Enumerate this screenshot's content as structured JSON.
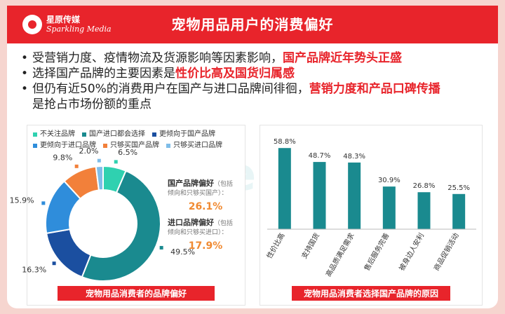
{
  "header": {
    "logo_cn": "星原传媒",
    "logo_en": "Sparkling Media",
    "title": "宠物用品用户的消费偏好"
  },
  "bullets": [
    {
      "plain": "受营销力度、疫情物流及货源影响等因素影响，",
      "highlight": "国产品牌近年势头正盛",
      "tail": ""
    },
    {
      "plain": "选择国产品牌的主要因素是",
      "highlight": "性价比高及国货归属感",
      "tail": ""
    },
    {
      "plain": "但仍有近50%的消费用户在国产与进口品牌间徘徊，",
      "highlight": "营销力度和产品口碑传播",
      "tail": ""
    },
    {
      "plain": "是抢占市场份额的重点",
      "highlight": "",
      "tail": ""
    }
  ],
  "watermark": "MobTech 袤博",
  "chart_data": [
    {
      "type": "pie",
      "caption": "宠物用品消费者的品牌偏好",
      "slices": [
        {
          "name": "不关注品牌",
          "value": 6.5,
          "label": "6.5%",
          "color": "#2fd1b0"
        },
        {
          "name": "国产进口都会选择",
          "value": 49.5,
          "label": "49.5%",
          "color": "#1a8a8f"
        },
        {
          "name": "更倾向于国产品牌",
          "value": 16.3,
          "label": "16.3%",
          "color": "#1b4fa0"
        },
        {
          "name": "更倾向于进口品牌",
          "value": 15.9,
          "label": "15.9%",
          "color": "#2f8ddb"
        },
        {
          "name": "只够买国产品牌",
          "value": 9.8,
          "label": "9.8%",
          "color": "#f2803a"
        },
        {
          "name": "只够买进口品牌",
          "value": 2.0,
          "label": "2.0%",
          "color": "#7fbde8"
        }
      ],
      "legend_rows": [
        [
          0,
          1,
          2
        ],
        [
          3,
          4,
          5
        ]
      ],
      "annotations": [
        {
          "label": "国产品牌偏好",
          "note1": "（包括",
          "note2": "倾向和只够买国产）：",
          "value": "26.1%"
        },
        {
          "label": "进口品牌偏好",
          "note1": "（包括",
          "note2": "倾向和只够买进口）：",
          "value": "17.9%"
        }
      ]
    },
    {
      "type": "bar",
      "caption": "宠物用品消费者选择国产品牌的原因",
      "categories": [
        "性价比高",
        "支持国货",
        "高品质满足需求",
        "售后服务完善",
        "被身边人安利",
        "商品促销活动"
      ],
      "values": [
        58.8,
        48.7,
        48.3,
        30.9,
        26.8,
        25.5
      ],
      "value_labels": [
        "58.8%",
        "48.7%",
        "48.3%",
        "30.9%",
        "26.8%",
        "25.5%"
      ],
      "ylim": [
        0,
        65
      ],
      "color": "#1a8a8f"
    }
  ]
}
